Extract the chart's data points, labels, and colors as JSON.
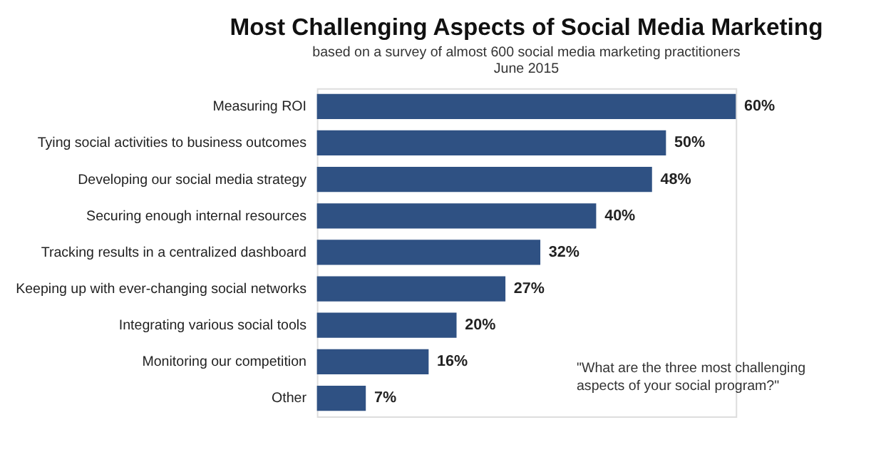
{
  "chart_data": {
    "type": "bar",
    "orientation": "horizontal",
    "title": "Most Challenging Aspects of Social Media Marketing",
    "subtitle": [
      "based on a survey of almost 600 social media marketing practitioners",
      "June 2015"
    ],
    "categories": [
      "Measuring ROI",
      "Tying social activities to business outcomes",
      "Developing our social media strategy",
      "Securing enough internal resources",
      "Tracking results in a centralized dashboard",
      "Keeping up with ever-changing social networks",
      "Integrating various social tools",
      "Monitoring our competition",
      "Other"
    ],
    "values": [
      60,
      50,
      48,
      40,
      32,
      27,
      20,
      16,
      7
    ],
    "value_labels": [
      "60%",
      "50%",
      "48%",
      "40%",
      "32%",
      "27%",
      "20%",
      "16%",
      "7%"
    ],
    "color": "#2f5183",
    "annotations": [
      "\"What are the three most challenging aspects of your social program?\""
    ]
  }
}
